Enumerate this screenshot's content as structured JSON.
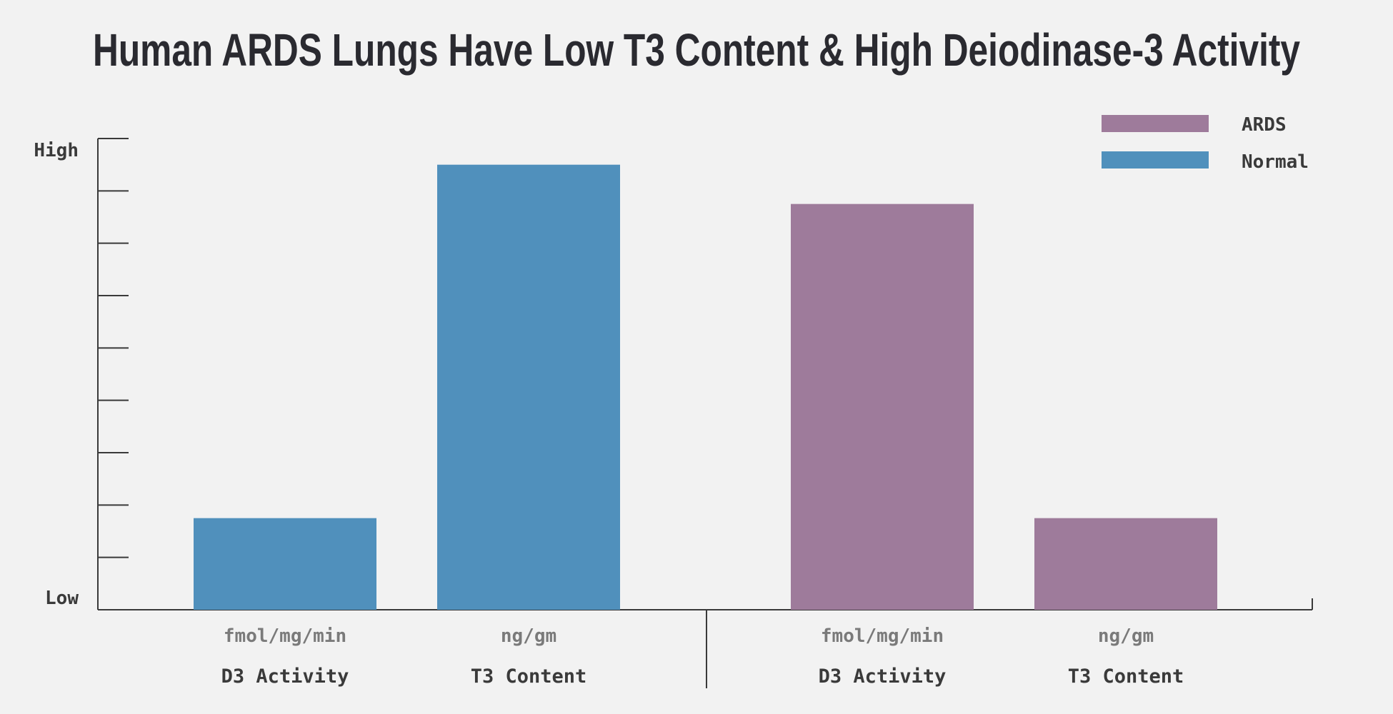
{
  "chart_data": {
    "type": "bar",
    "title": "Human ARDS Lungs Have Low T3 Content & High Deiodinase-3 Activity",
    "y_tick_labels": [
      "High",
      "Low"
    ],
    "ylim": [
      0,
      9
    ],
    "grid": false,
    "legend": {
      "placement": "top-right",
      "entries": [
        {
          "name": "ARDS",
          "color": "#9e7b9b"
        },
        {
          "name": "Normal",
          "color": "#5090bc"
        }
      ]
    },
    "groups": [
      {
        "series": "Normal",
        "bars": [
          {
            "category": "D3 Activity",
            "unit": "fmol/mg/min",
            "value": 1.75
          },
          {
            "category": "T3 Content",
            "unit": "ng/gm",
            "value": 8.5
          }
        ]
      },
      {
        "series": "ARDS",
        "bars": [
          {
            "category": "D3 Activity",
            "unit": "fmol/mg/min",
            "value": 7.75
          },
          {
            "category": "T3 Content",
            "unit": "ng/gm",
            "value": 1.75
          }
        ]
      }
    ]
  }
}
